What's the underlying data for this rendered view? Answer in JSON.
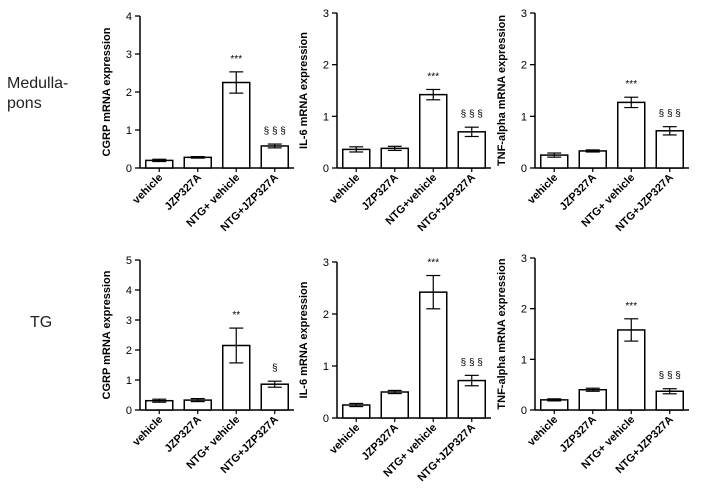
{
  "row_labels": [
    "Medulla-\npons",
    "TG"
  ],
  "chart_data": [
    {
      "type": "bar",
      "ylabel": "CGRP mRNA expression",
      "categories": [
        "vehicle",
        "JZP327A",
        "NTG+ vehicle",
        "NTG+JZP327A"
      ],
      "values": [
        0.2,
        0.28,
        2.25,
        0.58
      ],
      "errors": [
        0.03,
        0.02,
        0.28,
        0.05
      ],
      "annotations": [
        "",
        "",
        "***",
        "§ § §"
      ],
      "ylim": [
        0,
        4
      ],
      "yticks": [
        "0",
        "1",
        "2",
        "3",
        "4"
      ]
    },
    {
      "type": "bar",
      "ylabel": "IL-6 mRNA expression",
      "categories": [
        "vehicle",
        "JZP327A",
        "NTG+vehicle",
        "NTG+JZP327A"
      ],
      "values": [
        0.36,
        0.38,
        1.42,
        0.7
      ],
      "errors": [
        0.05,
        0.04,
        0.1,
        0.09
      ],
      "annotations": [
        "",
        "",
        "***",
        "§ § §"
      ],
      "ylim": [
        0,
        3
      ],
      "yticks": [
        "0",
        "1",
        "2",
        "3"
      ]
    },
    {
      "type": "bar",
      "ylabel": "TNF-alpha mRNA expression",
      "categories": [
        "vehicle",
        "JZP327A",
        "NTG+ vehicle",
        "NTG+JZP327A"
      ],
      "values": [
        0.25,
        0.33,
        1.27,
        0.72
      ],
      "errors": [
        0.04,
        0.02,
        0.1,
        0.08
      ],
      "annotations": [
        "",
        "",
        "***",
        "§ § §"
      ],
      "ylim": [
        0,
        3
      ],
      "yticks": [
        "0",
        "1",
        "2",
        "3"
      ]
    },
    {
      "type": "bar",
      "ylabel": "CGRP mRNA expression",
      "categories": [
        "vehicle",
        "JZP327A",
        "NTG+ vehicle",
        "NTG+JZP327A"
      ],
      "values": [
        0.31,
        0.33,
        2.15,
        0.86
      ],
      "errors": [
        0.05,
        0.05,
        0.58,
        0.1
      ],
      "annotations": [
        "",
        "",
        "**",
        "§"
      ],
      "ylim": [
        0,
        5
      ],
      "yticks": [
        "0",
        "1",
        "2",
        "3",
        "4",
        "5"
      ]
    },
    {
      "type": "bar",
      "ylabel": "IL-6 mRNA expression",
      "categories": [
        "vehicle",
        "JZP327A",
        "NTG+ vehicle",
        "NTG+JZP327A"
      ],
      "values": [
        0.25,
        0.5,
        2.42,
        0.72
      ],
      "errors": [
        0.03,
        0.03,
        0.32,
        0.1
      ],
      "annotations": [
        "",
        "",
        "***",
        "§ § §"
      ],
      "ylim": [
        0,
        3
      ],
      "yticks": [
        "0",
        "1",
        "2",
        "3"
      ]
    },
    {
      "type": "bar",
      "ylabel": "TNF-alpha mRNA expression",
      "categories": [
        "vehicle",
        "JZP327A",
        "NTG+ vehicle",
        "NTG+JZP327A"
      ],
      "values": [
        0.2,
        0.4,
        1.58,
        0.37
      ],
      "errors": [
        0.02,
        0.03,
        0.22,
        0.05
      ],
      "annotations": [
        "",
        "",
        "***",
        "§ § §"
      ],
      "ylim": [
        0,
        3
      ],
      "yticks": [
        "0",
        "1",
        "2",
        "3"
      ]
    }
  ]
}
